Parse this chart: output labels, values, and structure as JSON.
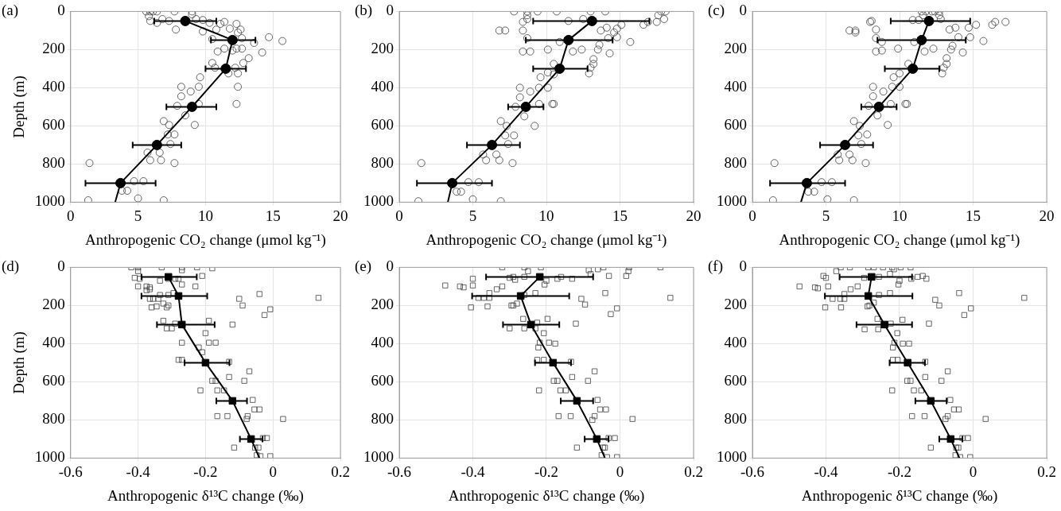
{
  "chart_data": [
    {
      "type": "scatter",
      "title": "(a)",
      "xlabel": "Anthropogenic CO₂ change (μmol kg⁻¹)",
      "ylabel": "Depth (m)",
      "xlim": [
        0,
        20
      ],
      "xticks": [
        0,
        5,
        10,
        15,
        20
      ],
      "ylim": [
        1000,
        0
      ],
      "yticks": [
        0,
        200,
        400,
        600,
        800,
        1000
      ],
      "grid": true,
      "series": [
        {
          "type": "scatter",
          "marker": "circle",
          "color": "#404040",
          "x": [
            5.6,
            5.9,
            6.1,
            6.4,
            7.7,
            9.0,
            9.0,
            5.8,
            5.9,
            6.4,
            6.8,
            7.3,
            9.3,
            9.8,
            10.3,
            11.4,
            11.1,
            12.3,
            7.8,
            9.8,
            10.8,
            11.8,
            12.6,
            12.4,
            10.5,
            12.7,
            13.6,
            14.7,
            15.7,
            11.4,
            12,
            10.9,
            12.3,
            12.7,
            14.2,
            13.2,
            10.5,
            10.7,
            12.8,
            12.2,
            11.7,
            12.4,
            9.6,
            8.2,
            12.4,
            8.9,
            8.2,
            9.5,
            7.9,
            9.5,
            12.3,
            8.5,
            9.2,
            6.9,
            7.3,
            7.2,
            7.7,
            7.4,
            5.7,
            6.6,
            5.9,
            6.7,
            7.7,
            1.4,
            4.7,
            5.4,
            3.8,
            4.2,
            5,
            6.9,
            1.3
          ],
          "values": [
            0,
            0,
            0,
            0,
            0,
            0,
            15,
            25,
            50,
            60,
            40,
            50,
            40,
            45,
            60,
            55,
            65,
            65,
            95,
            105,
            95,
            90,
            95,
            110,
            145,
            140,
            165,
            135,
            155,
            195,
            205,
            210,
            195,
            195,
            215,
            245,
            270,
            295,
            270,
            295,
            325,
            325,
            345,
            395,
            395,
            420,
            445,
            395,
            495,
            485,
            485,
            545,
            595,
            575,
            595,
            645,
            645,
            695,
            740,
            740,
            780,
            780,
            795,
            795,
            890,
            890,
            940,
            940,
            980,
            990,
            990
          ]
        },
        {
          "type": "line",
          "marker": "none",
          "color": "#000000",
          "x": [
            8.5,
            12,
            11.5,
            9,
            6.4,
            3.7,
            3.3
          ],
          "values": [
            50,
            150,
            300,
            500,
            700,
            900,
            1000
          ]
        },
        {
          "type": "scatter",
          "marker": "circle",
          "color": "#000000",
          "x": [
            8.5,
            12,
            11.5,
            9,
            6.4,
            3.7
          ],
          "values": [
            50,
            150,
            300,
            500,
            700,
            900
          ],
          "xerrors": [
            [
              6.2,
              10.8
            ],
            [
              10.4,
              13.7
            ],
            [
              10,
              13
            ],
            [
              7.1,
              10.8
            ],
            [
              4.6,
              8.2
            ],
            [
              1.1,
              6.3
            ]
          ]
        }
      ]
    },
    {
      "type": "scatter",
      "title": "(b)",
      "xlabel": "Anthropogenic CO₂ change (μmol kg⁻¹)",
      "xlim": [
        0,
        20
      ],
      "xticks": [
        0,
        5,
        10,
        15,
        20
      ],
      "ylim": [
        1000,
        0
      ],
      "yticks": [
        0,
        200,
        400,
        600,
        800,
        1000
      ],
      "grid": true,
      "series": [
        {
          "type": "scatter",
          "marker": "circle",
          "color": "#404040",
          "x": [
            7.8,
            8.7,
            9.4,
            10.7,
            13.0,
            14.0,
            17.8,
            18.1,
            17.6,
            8.7,
            8.7,
            8.4,
            11.5,
            12.5,
            18,
            17.5,
            16.6,
            16.9,
            15.1,
            6.8,
            7.2,
            8.4,
            13.7,
            14.1,
            14.8,
            14.6,
            8.7,
            10.9,
            14.2,
            15.7,
            14.8,
            13.6,
            13.5,
            10.1,
            11.8,
            12.4,
            8.4,
            8.9,
            14.3,
            13.2,
            13.2,
            10.5,
            13,
            12.9,
            10.1,
            10.5,
            9.6,
            8.2,
            10.1,
            9.5,
            8.9,
            8.2,
            7.9,
            9.5,
            10.4,
            10.5,
            8.5,
            9.2,
            6.9,
            7.3,
            7.2,
            7.8,
            7.4,
            5.7,
            6.6,
            5.9,
            6.8,
            7.7,
            1.5,
            4.7,
            5.4,
            3.9,
            4.2,
            5,
            6.9,
            1.3
          ],
          "values": [
            0,
            0,
            0,
            0,
            0,
            0,
            0,
            0,
            20,
            20,
            40,
            55,
            50,
            40,
            40,
            55,
            70,
            55,
            70,
            100,
            100,
            100,
            100,
            85,
            90,
            110,
            140,
            160,
            140,
            160,
            135,
            175,
            200,
            200,
            210,
            200,
            210,
            210,
            220,
            250,
            275,
            275,
            295,
            325,
            320,
            330,
            345,
            400,
            400,
            400,
            420,
            450,
            500,
            485,
            485,
            485,
            550,
            600,
            575,
            600,
            650,
            650,
            695,
            750,
            750,
            780,
            780,
            795,
            795,
            895,
            895,
            945,
            945,
            985,
            995,
            995
          ]
        },
        {
          "type": "line",
          "marker": "none",
          "color": "#000000",
          "x": [
            13.1,
            11.5,
            10.9,
            8.6,
            6.3,
            3.6,
            3.3
          ],
          "values": [
            50,
            150,
            300,
            500,
            700,
            900,
            1000
          ]
        },
        {
          "type": "scatter",
          "marker": "circle",
          "color": "#000000",
          "x": [
            13.1,
            11.5,
            10.9,
            8.6,
            6.3,
            3.6
          ],
          "values": [
            50,
            150,
            300,
            500,
            700,
            900
          ],
          "xerrors": [
            [
              9.1,
              17
            ],
            [
              8.6,
              14.5
            ],
            [
              9.1,
              12.8
            ],
            [
              7.4,
              9.8
            ],
            [
              4.6,
              8.2
            ],
            [
              1.2,
              6.3
            ]
          ]
        }
      ]
    },
    {
      "type": "scatter",
      "title": "(c)",
      "xlabel": "Anthropogenic CO₂ change (μmol kg⁻¹)",
      "xlim": [
        0,
        20
      ],
      "xticks": [
        0,
        5,
        10,
        15,
        20
      ],
      "ylim": [
        1000,
        0
      ],
      "yticks": [
        0,
        200,
        400,
        600,
        800,
        1000
      ],
      "grid": true,
      "series": [
        {
          "type": "scatter",
          "marker": "circle",
          "color": "#404040",
          "x": [
            11.5,
            11.8,
            12.2,
            12.4,
            12.7,
            11.6,
            12.7,
            10.9,
            11.3,
            12.8,
            8.1,
            8.0,
            17.2,
            16.5,
            16.3,
            15.2,
            14.7,
            13.8,
            13.4,
            6.6,
            7.0,
            7.0,
            8.4,
            14.8,
            14.0,
            11.0,
            15.7,
            8.4,
            8.8,
            13.6,
            13.5,
            12.3,
            9.9,
            11.7,
            8.4,
            8.8,
            14.3,
            13.2,
            13.2,
            10.6,
            13,
            12.9,
            10,
            9.6,
            8.2,
            10,
            9.5,
            8.9,
            8.2,
            7.9,
            9.4,
            10.4,
            10.5,
            8.5,
            9.2,
            6.9,
            7.3,
            7.2,
            7.8,
            7.4,
            5.8,
            6.6,
            5.9,
            6.8,
            7.7,
            1.5,
            4.7,
            5.4,
            3.8,
            4.2,
            5.1,
            6.9,
            1.4
          ],
          "values": [
            0,
            0,
            0,
            0,
            0,
            20,
            20,
            45,
            45,
            40,
            50,
            55,
            55,
            55,
            70,
            70,
            85,
            85,
            95,
            100,
            100,
            110,
            95,
            135,
            135,
            160,
            155,
            140,
            160,
            180,
            200,
            195,
            195,
            210,
            210,
            205,
            215,
            245,
            275,
            275,
            295,
            325,
            325,
            345,
            395,
            395,
            395,
            420,
            445,
            495,
            485,
            485,
            485,
            545,
            595,
            575,
            600,
            650,
            645,
            695,
            750,
            750,
            780,
            780,
            795,
            795,
            895,
            895,
            945,
            945,
            985,
            990,
            990
          ]
        },
        {
          "type": "line",
          "marker": "none",
          "color": "#000000",
          "x": [
            12,
            11.5,
            10.9,
            8.6,
            6.3,
            3.7,
            3.3
          ],
          "values": [
            50,
            150,
            300,
            500,
            700,
            900,
            1000
          ]
        },
        {
          "type": "scatter",
          "marker": "circle",
          "color": "#000000",
          "x": [
            12,
            11.5,
            10.9,
            8.6,
            6.3,
            3.7
          ],
          "values": [
            50,
            150,
            300,
            500,
            700,
            900
          ],
          "xerrors": [
            [
              9.4,
              14.8
            ],
            [
              8.5,
              14.5
            ],
            [
              9.0,
              12.7
            ],
            [
              7.4,
              9.8
            ],
            [
              4.6,
              8.2
            ],
            [
              1.2,
              6.3
            ]
          ]
        }
      ]
    },
    {
      "type": "scatter",
      "title": "(d)",
      "xlabel": "Anthropogenic δ¹³C change (‰)",
      "ylabel": "Depth (m)",
      "xlim": [
        -0.6,
        0.2
      ],
      "xticks": [
        -0.6,
        -0.4,
        -0.2,
        0,
        0.2
      ],
      "ylim": [
        1000,
        0
      ],
      "yticks": [
        0,
        200,
        400,
        600,
        800,
        1000
      ],
      "grid": true,
      "series": [
        {
          "type": "scatter",
          "marker": "square",
          "color": "#404040",
          "x": [
            -0.42,
            -0.4,
            -0.33,
            -0.27,
            -0.225,
            -0.18,
            -0.4,
            -0.27,
            -0.21,
            -0.41,
            -0.395,
            -0.335,
            -0.31,
            -0.29,
            -0.28,
            -0.4,
            -0.375,
            -0.365,
            -0.27,
            -0.23,
            -0.375,
            -0.365,
            -0.335,
            -0.31,
            -0.295,
            -0.04,
            0.135,
            -0.1,
            -0.365,
            -0.355,
            -0.34,
            -0.325,
            -0.31,
            -0.09,
            -0.345,
            -0.36,
            -0.315,
            -0.008,
            -0.025,
            -0.325,
            -0.29,
            -0.12,
            -0.19,
            -0.315,
            -0.3,
            -0.2,
            -0.27,
            -0.17,
            -0.19,
            -0.22,
            -0.21,
            -0.28,
            -0.27,
            -0.13,
            -0.07,
            -0.13,
            -0.085,
            -0.18,
            -0.17,
            -0.215,
            -0.165,
            -0.145,
            -0.06,
            -0.055,
            -0.04,
            -0.165,
            -0.135,
            -0.075,
            -0.078,
            0.03,
            -0.03,
            -0.018,
            -0.115,
            -0.053,
            -0.043,
            -0.048,
            -0.037,
            -0.008
          ],
          "values": [
            0,
            0,
            0,
            0,
            0,
            5,
            20,
            15,
            45,
            55,
            60,
            70,
            60,
            60,
            60,
            100,
            100,
            105,
            90,
            100,
            120,
            115,
            145,
            145,
            135,
            140,
            160,
            165,
            165,
            165,
            165,
            190,
            200,
            200,
            205,
            210,
            210,
            220,
            250,
            280,
            295,
            300,
            280,
            320,
            320,
            345,
            395,
            395,
            395,
            420,
            445,
            485,
            485,
            495,
            545,
            575,
            595,
            595,
            595,
            645,
            645,
            645,
            695,
            745,
            745,
            780,
            780,
            780,
            795,
            795,
            895,
            895,
            945,
            945,
            945,
            985,
            990,
            990
          ]
        },
        {
          "type": "line",
          "marker": "none",
          "color": "#000000",
          "x": [
            -0.31,
            -0.28,
            -0.27,
            -0.2,
            -0.12,
            -0.065,
            -0.04
          ],
          "values": [
            50,
            150,
            300,
            500,
            700,
            900,
            1000
          ]
        },
        {
          "type": "scatter",
          "marker": "square",
          "color": "#000000",
          "x": [
            -0.31,
            -0.28,
            -0.27,
            -0.2,
            -0.12,
            -0.065
          ],
          "values": [
            50,
            150,
            300,
            500,
            700,
            900
          ],
          "xerrors": [
            [
              -0.39,
              -0.226
            ],
            [
              -0.39,
              -0.195
            ],
            [
              -0.344,
              -0.173
            ],
            [
              -0.262,
              -0.129
            ],
            [
              -0.168,
              -0.077
            ],
            [
              -0.098,
              -0.031
            ]
          ]
        }
      ]
    },
    {
      "type": "scatter",
      "title": "(e)",
      "xlabel": "Anthropogenic δ¹³C change (‰)",
      "xlim": [
        -0.6,
        0.2
      ],
      "xticks": [
        -0.6,
        -0.4,
        -0.2,
        0,
        0.2
      ],
      "ylim": [
        1000,
        0
      ],
      "yticks": [
        0,
        200,
        400,
        600,
        800,
        1000
      ],
      "grid": true,
      "series": [
        {
          "type": "scatter",
          "marker": "square",
          "color": "#404040",
          "x": [
            -0.32,
            -0.26,
            -0.215,
            -0.085,
            -0.06,
            -0.045,
            0.025,
            0.11,
            0.023,
            -0.25,
            -0.08,
            -0.03,
            0.017,
            -0.3,
            -0.29,
            -0.26,
            -0.2,
            -0.17,
            -0.16,
            -0.13,
            -0.205,
            -0.285,
            -0.4,
            -0.475,
            -0.435,
            -0.425,
            -0.4,
            -0.335,
            -0.32,
            -0.355,
            -0.23,
            -0.04,
            0.137,
            -0.385,
            -0.37,
            -0.355,
            -0.26,
            -0.105,
            -0.095,
            -0.295,
            -0.29,
            -0.28,
            -0.405,
            -0.36,
            -0.008,
            -0.025,
            -0.263,
            -0.197,
            -0.12,
            -0.3,
            -0.26,
            -0.23,
            -0.225,
            -0.207,
            -0.218,
            -0.193,
            -0.176,
            -0.222,
            -0.225,
            -0.207,
            -0.133,
            -0.069,
            -0.13,
            -0.087,
            -0.18,
            -0.17,
            -0.22,
            -0.162,
            -0.147,
            -0.061,
            -0.054,
            -0.038,
            -0.167,
            -0.134,
            -0.069,
            -0.075,
            0.034,
            -0.031,
            -0.014,
            -0.117,
            -0.046,
            -0.041,
            -0.05,
            -0.035,
            -0.008
          ],
          "values": [
            0,
            0,
            0,
            15,
            10,
            0,
            0,
            0,
            20,
            20,
            35,
            45,
            45,
            55,
            50,
            50,
            70,
            60,
            50,
            60,
            90,
            65,
            60,
            95,
            100,
            105,
            95,
            115,
            100,
            135,
            135,
            135,
            160,
            160,
            160,
            160,
            145,
            165,
            195,
            200,
            200,
            190,
            210,
            205,
            215,
            245,
            270,
            270,
            295,
            320,
            320,
            320,
            290,
            345,
            395,
            395,
            400,
            420,
            485,
            485,
            495,
            545,
            575,
            595,
            595,
            595,
            645,
            645,
            645,
            695,
            745,
            745,
            780,
            780,
            780,
            800,
            795,
            895,
            895,
            945,
            945,
            945,
            985,
            995,
            995
          ]
        },
        {
          "type": "line",
          "marker": "none",
          "color": "#000000",
          "x": [
            -0.218,
            -0.27,
            -0.242,
            -0.182,
            -0.117,
            -0.063,
            -0.041
          ],
          "values": [
            50,
            150,
            300,
            500,
            700,
            900,
            1000
          ]
        },
        {
          "type": "scatter",
          "marker": "square",
          "color": "#000000",
          "x": [
            -0.218,
            -0.27,
            -0.242,
            -0.182,
            -0.117,
            -0.063
          ],
          "values": [
            50,
            150,
            300,
            500,
            700,
            900
          ],
          "xerrors": [
            [
              -0.364,
              -0.073
            ],
            [
              -0.402,
              -0.138
            ],
            [
              -0.318,
              -0.165
            ],
            [
              -0.231,
              -0.133
            ],
            [
              -0.161,
              -0.073
            ],
            [
              -0.096,
              -0.031
            ]
          ]
        }
      ]
    },
    {
      "type": "scatter",
      "title": "(f)",
      "xlabel": "Anthropogenic δ¹³C change (‰)",
      "xlim": [
        -0.6,
        0.2
      ],
      "xticks": [
        -0.6,
        -0.4,
        -0.2,
        0,
        0.2
      ],
      "ylim": [
        1000,
        0
      ],
      "yticks": [
        0,
        200,
        400,
        600,
        800,
        1000
      ],
      "grid": true,
      "series": [
        {
          "type": "scatter",
          "marker": "square",
          "color": "#404040",
          "x": [
            -0.36,
            -0.335,
            -0.285,
            -0.27,
            -0.245,
            -0.22,
            -0.197,
            -0.17,
            -0.372,
            -0.215,
            -0.226,
            -0.407,
            -0.4,
            -0.296,
            -0.256,
            -0.151,
            -0.137,
            -0.127,
            -0.168,
            -0.2,
            -0.203,
            -0.472,
            -0.43,
            -0.422,
            -0.394,
            -0.314,
            -0.333,
            -0.35,
            -0.226,
            -0.038,
            0.139,
            -0.382,
            -0.361,
            -0.35,
            -0.256,
            -0.103,
            -0.092,
            -0.287,
            -0.282,
            -0.27,
            -0.402,
            -0.359,
            -0.006,
            -0.024,
            -0.26,
            -0.192,
            -0.12,
            -0.295,
            -0.258,
            -0.224,
            -0.206,
            -0.214,
            -0.191,
            -0.174,
            -0.218,
            -0.218,
            -0.205,
            -0.13,
            -0.069,
            -0.13,
            -0.086,
            -0.179,
            -0.17,
            -0.22,
            -0.161,
            -0.141,
            -0.062,
            -0.052,
            -0.039,
            -0.166,
            -0.132,
            -0.069,
            -0.075,
            0.034,
            -0.029,
            -0.014,
            -0.115,
            -0.046,
            -0.04,
            -0.048,
            -0.035,
            -0.008
          ],
          "values": [
            0,
            0,
            0,
            0,
            0,
            0,
            0,
            0,
            20,
            10,
            35,
            45,
            55,
            55,
            50,
            50,
            45,
            60,
            60,
            70,
            90,
            100,
            105,
            110,
            100,
            100,
            115,
            140,
            135,
            135,
            160,
            165,
            165,
            165,
            145,
            170,
            200,
            205,
            200,
            185,
            210,
            210,
            215,
            250,
            270,
            275,
            295,
            325,
            325,
            295,
            345,
            395,
            400,
            400,
            420,
            485,
            485,
            495,
            545,
            575,
            595,
            595,
            595,
            645,
            645,
            645,
            695,
            745,
            745,
            780,
            780,
            780,
            795,
            795,
            895,
            895,
            945,
            945,
            945,
            985,
            995,
            995
          ]
        },
        {
          "type": "line",
          "marker": "none",
          "color": "#000000",
          "x": [
            -0.276,
            -0.285,
            -0.241,
            -0.178,
            -0.115,
            -0.061,
            -0.037
          ],
          "values": [
            50,
            150,
            300,
            500,
            700,
            900,
            1000
          ]
        },
        {
          "type": "scatter",
          "marker": "square",
          "color": "#000000",
          "x": [
            -0.276,
            -0.285,
            -0.241,
            -0.178,
            -0.115,
            -0.061
          ],
          "values": [
            50,
            150,
            300,
            500,
            700,
            900
          ],
          "xerrors": [
            [
              -0.363,
              -0.166
            ],
            [
              -0.403,
              -0.165
            ],
            [
              -0.317,
              -0.166
            ],
            [
              -0.227,
              -0.131
            ],
            [
              -0.157,
              -0.072
            ],
            [
              -0.092,
              -0.029
            ]
          ]
        }
      ]
    }
  ]
}
